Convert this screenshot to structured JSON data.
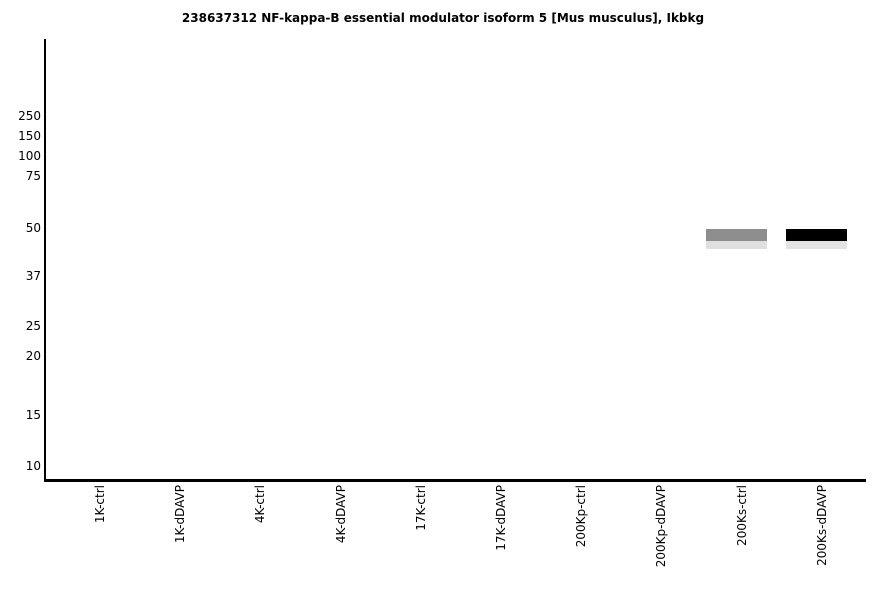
{
  "figure": {
    "title": "238637312 NF-kappa-B essential modulator isoform 5 [Mus musculus], Ikbkg",
    "colors": {
      "background": "#ffffff",
      "axis": "#000000",
      "text": "#000000"
    }
  },
  "chart_data": {
    "type": "bar",
    "subtype": "western-blot-gel-lanes",
    "title": "238637312 NF-kappa-B essential modulator isoform 5 [Mus musculus], Ikbkg",
    "xlabel": "",
    "ylabel": "",
    "grid": false,
    "legend": false,
    "y_axis": {
      "unit": "kDa molecular-weight markers",
      "scale": "gel-migration (log-like), 250 at top to 10 at bottom",
      "tick_labels": [
        250,
        150,
        100,
        75,
        50,
        37,
        25,
        20,
        15,
        10
      ]
    },
    "x_tick_labels": [
      "1K-ctrl",
      "1K-dDAVP",
      "4K-ctrl",
      "4K-dDAVP",
      "17K-ctrl",
      "17K-dDAVP",
      "200Kp-ctrl",
      "200Kp-dDAVP",
      "200Ks-ctrl",
      "200Ks-dDAVP"
    ],
    "bands": [
      {
        "lane": "200Ks-ctrl",
        "lane_index": 8,
        "approx_mw_kda": 48,
        "intensity": "medium",
        "color": "#8d8d8d",
        "trail_color": "#dfdfdf"
      },
      {
        "lane": "200Ks-dDAVP",
        "lane_index": 9,
        "approx_mw_kda": 48,
        "intensity": "strong",
        "color": "#000000",
        "trail_color": "#e3e3e3"
      }
    ],
    "empty_lanes": [
      "1K-ctrl",
      "1K-dDAVP",
      "4K-ctrl",
      "4K-dDAVP",
      "17K-ctrl",
      "17K-dDAVP",
      "200Kp-ctrl",
      "200Kp-dDAVP"
    ]
  }
}
